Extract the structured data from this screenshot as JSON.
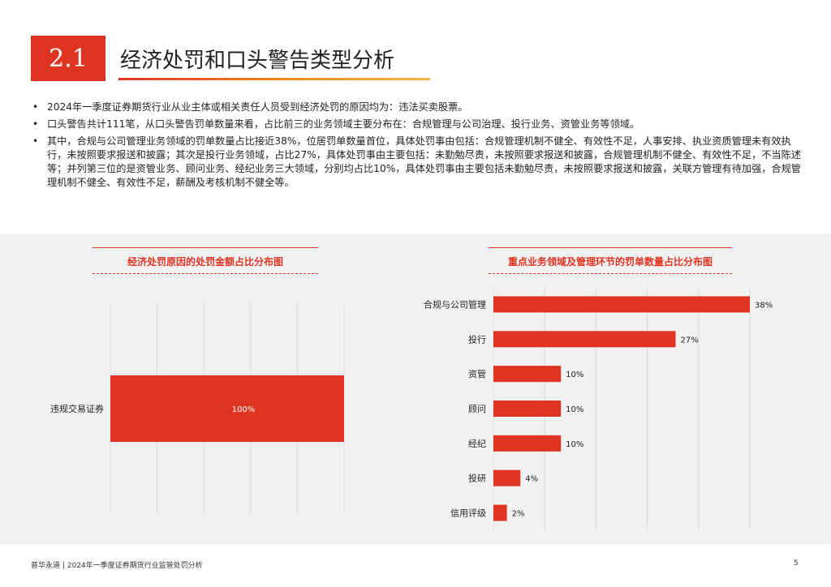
{
  "section_number": "2.1",
  "title": "经济处罚和口头警告类型分析",
  "bullets": [
    "2024年一季度证券期货行业从业主体或相关责任人员受到经济处罚的原因均为：违法买卖股票。",
    "口头警告共计111笔，从口头警告罚单数量来看，占比前三的业务领域主要分布在：合规管理与公司治理、投行业务、资管业务等领域。",
    "其中，合规与公司管理业务领域的罚单数量占比接近38%，位居罚单数量首位，具体处罚事由包括：合规管理机制不健全、有效性不足，人事安排、执业资质管理未有效执行，未按照要求报送和披露；其次是投行业务领域，占比27%，具体处罚事由主要包括：未勤勉尽责，未按照要求报送和披露，合规管理机制不健全、有效性不足，不当陈述等；并列第三位的是资管业务、顾问业务、经纪业务三大领域，分别均占比10%，具体处罚事由主要包括未勤勉尽责，未按照要求报送和披露，关联方管理有待加强，合规管理机制不健全、有效性不足，薪酬及考核机制不健全等。"
  ],
  "bullet_symbol": "•",
  "chart_data": [
    {
      "type": "bar",
      "orientation": "horizontal",
      "title": "经济处罚原因的处罚金额占比分布图",
      "categories": [
        "违规交易证券"
      ],
      "values": [
        100
      ],
      "value_labels": [
        "100%"
      ],
      "xlim": [
        0,
        100
      ],
      "grid": true,
      "bar_color": "#e03422"
    },
    {
      "type": "bar",
      "orientation": "horizontal",
      "title": "重点业务领域及管理环节的罚单数量占比分布图",
      "categories": [
        "合规与公司管理",
        "投行",
        "资管",
        "顾问",
        "经纪",
        "投研",
        "信用评级"
      ],
      "values": [
        38,
        27,
        10,
        10,
        10,
        4,
        2
      ],
      "value_labels": [
        "38%",
        "27%",
        "10%",
        "10%",
        "10%",
        "4%",
        "2%"
      ],
      "xlim": [
        0,
        38
      ],
      "grid": true,
      "bar_color": "#e03422"
    }
  ],
  "footer": {
    "left": "普华永道 | 2024年一季度证券期货行业监管处罚分析",
    "page_number": "5"
  },
  "colors": {
    "accent": "#e03422",
    "band": "#f1f1f1"
  }
}
